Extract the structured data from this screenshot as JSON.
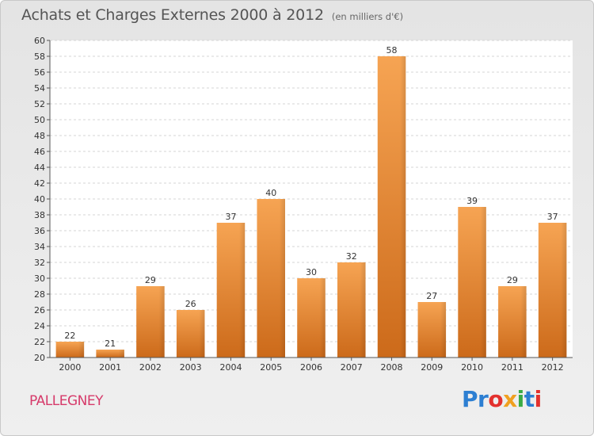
{
  "chart_data": {
    "type": "bar",
    "title": "Achats et Charges Externes 2000 à 2012",
    "subtitle": "(en milliers d'€)",
    "categories": [
      "2000",
      "2001",
      "2002",
      "2003",
      "2004",
      "2005",
      "2006",
      "2007",
      "2008",
      "2009",
      "2010",
      "2011",
      "2012"
    ],
    "values": [
      22,
      21,
      29,
      26,
      37,
      40,
      30,
      32,
      58,
      27,
      39,
      29,
      37
    ],
    "ylim": [
      20,
      60
    ],
    "ytick_step": 2,
    "grid": true,
    "bar_color_top": "#f6a453",
    "bar_color_bottom": "#cc6a1a",
    "legend": "none"
  },
  "footer": {
    "commune": "PALLEGNEY",
    "logo": [
      "Pr",
      "o",
      "x",
      "i",
      "t",
      "i"
    ]
  }
}
